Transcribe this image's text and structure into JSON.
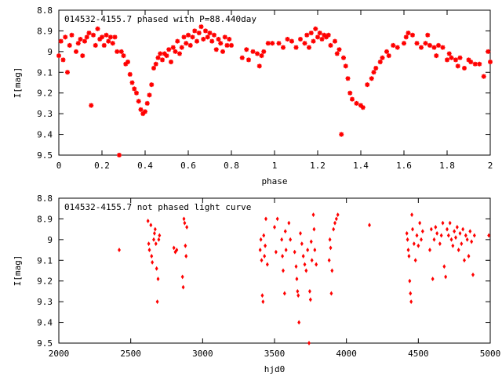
{
  "chart_data": [
    {
      "type": "scatter",
      "title": "014532-4155.7 phased with P=88.440day",
      "xlabel": "phase",
      "ylabel": "I[mag]",
      "xlim": [
        0,
        2
      ],
      "ylim": [
        8.8,
        9.5
      ],
      "y_inverted": true,
      "grid": false,
      "legend": "none",
      "color": "#ff0000",
      "marker": "star",
      "x_ticks": [
        0,
        0.2,
        0.4,
        0.6,
        0.8,
        1,
        1.2,
        1.4,
        1.6,
        1.8,
        2
      ],
      "x_tick_labels": [
        "0",
        "0.2",
        "0.4",
        "0.6",
        "0.8",
        "1",
        "1.2",
        "1.4",
        "1.6",
        "1.8",
        "2"
      ],
      "y_ticks": [
        8.8,
        8.9,
        9,
        9.1,
        9.2,
        9.3,
        9.4,
        9.5
      ],
      "y_tick_labels": [
        "8.8",
        "8.9",
        "9",
        "9.1",
        "9.2",
        "9.3",
        "9.4",
        "9.5"
      ],
      "points": [
        [
          0.0,
          9.02
        ],
        [
          0.01,
          8.95
        ],
        [
          0.02,
          9.04
        ],
        [
          0.03,
          8.93
        ],
        [
          0.04,
          9.1
        ],
        [
          0.05,
          8.97
        ],
        [
          0.06,
          8.92
        ],
        [
          0.08,
          9.0
        ],
        [
          0.09,
          8.96
        ],
        [
          0.1,
          8.94
        ],
        [
          0.11,
          9.02
        ],
        [
          0.12,
          8.95
        ],
        [
          0.13,
          8.93
        ],
        [
          0.14,
          8.91
        ],
        [
          0.15,
          9.26
        ],
        [
          0.16,
          8.92
        ],
        [
          0.17,
          8.97
        ],
        [
          0.18,
          8.89
        ],
        [
          0.19,
          8.94
        ],
        [
          0.2,
          8.93
        ],
        [
          0.21,
          8.97
        ],
        [
          0.22,
          8.92
        ],
        [
          0.23,
          8.95
        ],
        [
          0.24,
          8.93
        ],
        [
          0.25,
          8.96
        ],
        [
          0.26,
          8.93
        ],
        [
          0.27,
          9.0
        ],
        [
          0.28,
          9.5
        ],
        [
          0.29,
          9.0
        ],
        [
          0.3,
          9.02
        ],
        [
          0.31,
          9.06
        ],
        [
          0.32,
          9.05
        ],
        [
          0.33,
          9.11
        ],
        [
          0.34,
          9.15
        ],
        [
          0.35,
          9.18
        ],
        [
          0.36,
          9.2
        ],
        [
          0.37,
          9.24
        ],
        [
          0.38,
          9.28
        ],
        [
          0.39,
          9.3
        ],
        [
          0.4,
          9.29
        ],
        [
          0.41,
          9.25
        ],
        [
          0.42,
          9.21
        ],
        [
          0.43,
          9.16
        ],
        [
          0.44,
          9.08
        ],
        [
          0.45,
          9.06
        ],
        [
          0.46,
          9.03
        ],
        [
          0.47,
          9.01
        ],
        [
          0.48,
          9.04
        ],
        [
          0.49,
          9.01
        ],
        [
          0.5,
          9.02
        ],
        [
          0.51,
          8.99
        ],
        [
          0.52,
          9.05
        ],
        [
          0.53,
          8.98
        ],
        [
          0.54,
          9.0
        ],
        [
          0.55,
          8.95
        ],
        [
          0.56,
          9.01
        ],
        [
          0.57,
          8.98
        ],
        [
          0.58,
          8.93
        ],
        [
          0.59,
          8.96
        ],
        [
          0.6,
          8.92
        ],
        [
          0.61,
          8.97
        ],
        [
          0.62,
          8.93
        ],
        [
          0.63,
          8.9
        ],
        [
          0.64,
          8.95
        ],
        [
          0.65,
          8.91
        ],
        [
          0.66,
          8.88
        ],
        [
          0.67,
          8.94
        ],
        [
          0.68,
          8.9
        ],
        [
          0.69,
          8.93
        ],
        [
          0.7,
          8.91
        ],
        [
          0.71,
          8.95
        ],
        [
          0.72,
          8.92
        ],
        [
          0.73,
          8.99
        ],
        [
          0.74,
          8.94
        ],
        [
          0.75,
          8.96
        ],
        [
          0.76,
          9.0
        ],
        [
          0.77,
          8.93
        ],
        [
          0.78,
          8.97
        ],
        [
          0.79,
          8.94
        ],
        [
          0.8,
          8.97
        ],
        [
          0.85,
          9.03
        ],
        [
          0.87,
          8.99
        ],
        [
          0.88,
          9.04
        ],
        [
          0.9,
          9.0
        ],
        [
          0.92,
          9.01
        ],
        [
          0.93,
          9.07
        ],
        [
          0.94,
          9.02
        ],
        [
          0.95,
          9.0
        ],
        [
          0.97,
          8.96
        ],
        [
          0.99,
          8.96
        ],
        [
          1.02,
          8.96
        ],
        [
          1.04,
          8.98
        ],
        [
          1.06,
          8.94
        ],
        [
          1.08,
          8.95
        ],
        [
          1.1,
          8.98
        ],
        [
          1.12,
          8.94
        ],
        [
          1.14,
          8.96
        ],
        [
          1.15,
          8.92
        ],
        [
          1.16,
          8.98
        ],
        [
          1.17,
          8.91
        ],
        [
          1.18,
          8.95
        ],
        [
          1.19,
          8.89
        ],
        [
          1.2,
          8.93
        ],
        [
          1.21,
          8.91
        ],
        [
          1.22,
          8.94
        ],
        [
          1.23,
          8.92
        ],
        [
          1.24,
          8.93
        ],
        [
          1.25,
          8.92
        ],
        [
          1.26,
          8.97
        ],
        [
          1.28,
          8.95
        ],
        [
          1.29,
          9.01
        ],
        [
          1.3,
          8.99
        ],
        [
          1.31,
          9.4
        ],
        [
          1.32,
          9.03
        ],
        [
          1.33,
          9.07
        ],
        [
          1.34,
          9.13
        ],
        [
          1.35,
          9.2
        ],
        [
          1.36,
          9.23
        ],
        [
          1.38,
          9.25
        ],
        [
          1.4,
          9.26
        ],
        [
          1.41,
          9.27
        ],
        [
          1.43,
          9.16
        ],
        [
          1.45,
          9.13
        ],
        [
          1.46,
          9.1
        ],
        [
          1.47,
          9.08
        ],
        [
          1.49,
          9.05
        ],
        [
          1.5,
          9.03
        ],
        [
          1.52,
          9.0
        ],
        [
          1.53,
          9.02
        ],
        [
          1.55,
          8.97
        ],
        [
          1.57,
          8.98
        ],
        [
          1.6,
          8.96
        ],
        [
          1.61,
          8.93
        ],
        [
          1.62,
          8.91
        ],
        [
          1.64,
          8.92
        ],
        [
          1.66,
          8.96
        ],
        [
          1.68,
          8.98
        ],
        [
          1.7,
          8.96
        ],
        [
          1.71,
          8.92
        ],
        [
          1.72,
          8.97
        ],
        [
          1.74,
          8.98
        ],
        [
          1.75,
          9.02
        ],
        [
          1.76,
          8.97
        ],
        [
          1.78,
          8.98
        ],
        [
          1.8,
          9.04
        ],
        [
          1.81,
          9.01
        ],
        [
          1.82,
          9.03
        ],
        [
          1.84,
          9.04
        ],
        [
          1.85,
          9.07
        ],
        [
          1.86,
          9.03
        ],
        [
          1.88,
          9.08
        ],
        [
          1.9,
          9.04
        ],
        [
          1.91,
          9.05
        ],
        [
          1.93,
          9.06
        ],
        [
          1.95,
          9.06
        ],
        [
          1.97,
          9.12
        ],
        [
          1.99,
          9.0
        ],
        [
          2.0,
          9.05
        ]
      ]
    },
    {
      "type": "scatter",
      "title": "014532-4155.7 not phased light curve",
      "xlabel": "hjd0",
      "ylabel": "I[mag]",
      "xlim": [
        2000,
        5000
      ],
      "ylim": [
        8.8,
        9.5
      ],
      "y_inverted": true,
      "grid": false,
      "legend": "none",
      "color": "#ff0000",
      "marker": "dot",
      "x_ticks": [
        2000,
        2500,
        3000,
        3500,
        4000,
        4500,
        5000
      ],
      "x_tick_labels": [
        "2000",
        "2500",
        "3000",
        "3500",
        "4000",
        "4500",
        "5000"
      ],
      "y_ticks": [
        8.8,
        8.9,
        9,
        9.1,
        9.2,
        9.3,
        9.4,
        9.5
      ],
      "y_tick_labels": [
        "8.8",
        "8.9",
        "9",
        "9.1",
        "9.2",
        "9.3",
        "9.4",
        "9.5"
      ],
      "points": [
        [
          2420,
          9.05
        ],
        [
          2620,
          8.91
        ],
        [
          2625,
          9.02
        ],
        [
          2630,
          9.05
        ],
        [
          2640,
          8.93
        ],
        [
          2645,
          9.08
        ],
        [
          2650,
          9.11
        ],
        [
          2660,
          9.0
        ],
        [
          2665,
          8.97
        ],
        [
          2670,
          8.95
        ],
        [
          2675,
          9.02
        ],
        [
          2680,
          9.14
        ],
        [
          2685,
          9.3
        ],
        [
          2690,
          9.19
        ],
        [
          2695,
          9.0
        ],
        [
          2700,
          8.98
        ],
        [
          2800,
          9.04
        ],
        [
          2810,
          9.06
        ],
        [
          2820,
          9.05
        ],
        [
          2860,
          9.18
        ],
        [
          2865,
          9.23
        ],
        [
          2870,
          8.9
        ],
        [
          2875,
          8.92
        ],
        [
          2880,
          9.03
        ],
        [
          2885,
          9.08
        ],
        [
          2890,
          8.94
        ],
        [
          3400,
          9.05
        ],
        [
          3405,
          9.0
        ],
        [
          3410,
          9.1
        ],
        [
          3415,
          9.27
        ],
        [
          3420,
          9.3
        ],
        [
          3425,
          8.98
        ],
        [
          3430,
          9.08
        ],
        [
          3435,
          9.03
        ],
        [
          3440,
          8.9
        ],
        [
          3450,
          9.12
        ],
        [
          3500,
          8.94
        ],
        [
          3510,
          9.06
        ],
        [
          3520,
          8.9
        ],
        [
          3550,
          9.0
        ],
        [
          3555,
          9.08
        ],
        [
          3560,
          9.15
        ],
        [
          3570,
          9.26
        ],
        [
          3575,
          8.96
        ],
        [
          3580,
          9.05
        ],
        [
          3600,
          8.92
        ],
        [
          3610,
          9.0
        ],
        [
          3640,
          9.06
        ],
        [
          3650,
          9.13
        ],
        [
          3655,
          9.19
        ],
        [
          3660,
          9.25
        ],
        [
          3665,
          9.27
        ],
        [
          3670,
          9.4
        ],
        [
          3680,
          8.97
        ],
        [
          3690,
          9.02
        ],
        [
          3700,
          9.08
        ],
        [
          3710,
          9.12
        ],
        [
          3720,
          9.15
        ],
        [
          3730,
          9.05
        ],
        [
          3740,
          9.5
        ],
        [
          3745,
          9.25
        ],
        [
          3750,
          9.29
        ],
        [
          3755,
          9.01
        ],
        [
          3760,
          9.1
        ],
        [
          3770,
          8.88
        ],
        [
          3775,
          8.95
        ],
        [
          3780,
          9.05
        ],
        [
          3790,
          9.12
        ],
        [
          3880,
          9.1
        ],
        [
          3885,
          9.0
        ],
        [
          3890,
          9.04
        ],
        [
          3895,
          9.26
        ],
        [
          3900,
          9.15
        ],
        [
          3910,
          8.95
        ],
        [
          3920,
          8.92
        ],
        [
          3930,
          8.9
        ],
        [
          3940,
          8.88
        ],
        [
          4160,
          8.93
        ],
        [
          4420,
          8.97
        ],
        [
          4425,
          9.0
        ],
        [
          4430,
          9.05
        ],
        [
          4435,
          9.08
        ],
        [
          4440,
          9.2
        ],
        [
          4445,
          9.26
        ],
        [
          4450,
          9.3
        ],
        [
          4455,
          8.88
        ],
        [
          4460,
          8.95
        ],
        [
          4470,
          9.02
        ],
        [
          4480,
          9.1
        ],
        [
          4490,
          8.98
        ],
        [
          4500,
          9.03
        ],
        [
          4510,
          8.92
        ],
        [
          4520,
          9.0
        ],
        [
          4530,
          8.96
        ],
        [
          4580,
          9.05
        ],
        [
          4590,
          8.95
        ],
        [
          4600,
          9.19
        ],
        [
          4610,
          9.0
        ],
        [
          4620,
          8.94
        ],
        [
          4630,
          8.97
        ],
        [
          4650,
          9.02
        ],
        [
          4660,
          8.98
        ],
        [
          4670,
          8.92
        ],
        [
          4680,
          9.13
        ],
        [
          4690,
          9.18
        ],
        [
          4700,
          8.95
        ],
        [
          4710,
          8.98
        ],
        [
          4720,
          8.92
        ],
        [
          4730,
          9.0
        ],
        [
          4740,
          9.03
        ],
        [
          4750,
          8.96
        ],
        [
          4760,
          8.99
        ],
        [
          4770,
          8.94
        ],
        [
          4780,
          9.05
        ],
        [
          4790,
          8.97
        ],
        [
          4800,
          9.02
        ],
        [
          4810,
          8.95
        ],
        [
          4820,
          9.1
        ],
        [
          4830,
          8.98
        ],
        [
          4840,
          9.0
        ],
        [
          4850,
          9.08
        ],
        [
          4860,
          8.96
        ],
        [
          4870,
          9.01
        ],
        [
          4880,
          9.17
        ],
        [
          4890,
          8.98
        ],
        [
          4990,
          8.98
        ]
      ]
    }
  ]
}
